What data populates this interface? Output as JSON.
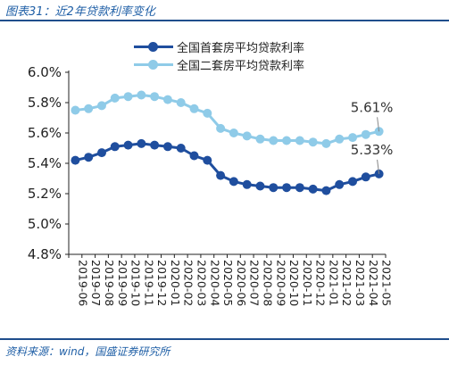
{
  "figure_title": "图表31：近2年贷款利率变化",
  "source_note": "资料来源：wind，国盛证券研究所",
  "chart_data": {
    "type": "line",
    "categories": [
      "2019-06",
      "2019-07",
      "2019-08",
      "2019-09",
      "2019-10",
      "2019-11",
      "2019-12",
      "2020-01",
      "2020-02",
      "2020-03",
      "2020-04",
      "2020-05",
      "2020-06",
      "2020-07",
      "2020-08",
      "2020-09",
      "2020-10",
      "2020-11",
      "2020-12",
      "2021-01",
      "2021-02",
      "2021-03",
      "2021-04",
      "2021-05"
    ],
    "x_tick_labels": [
      "2019-06",
      "2019-08",
      "2019-10",
      "2019-12",
      "2020-02",
      "2020-04",
      "2020-06",
      "2020-08",
      "2020-10",
      "2020-12",
      "2021-02",
      "2021-04"
    ],
    "x_tick_labels_right": [
      "2019-07",
      "2019-09",
      "2019-11",
      "2020-01",
      "2020-03",
      "2020-05",
      "2020-07",
      "2020-09",
      "2020-11",
      "2021-01",
      "2021-03",
      "2021-05"
    ],
    "series": [
      {
        "name": "全国首套房平均贷款利率",
        "color": "#1f4e9e",
        "values": [
          5.42,
          5.44,
          5.47,
          5.51,
          5.52,
          5.53,
          5.52,
          5.51,
          5.5,
          5.45,
          5.42,
          5.32,
          5.28,
          5.26,
          5.25,
          5.24,
          5.24,
          5.24,
          5.23,
          5.22,
          5.26,
          5.28,
          5.31,
          5.33
        ]
      },
      {
        "name": "全国二套房平均贷款利率",
        "color": "#8fcbe8",
        "values": [
          5.75,
          5.76,
          5.78,
          5.83,
          5.84,
          5.85,
          5.84,
          5.82,
          5.8,
          5.76,
          5.73,
          5.63,
          5.6,
          5.58,
          5.56,
          5.55,
          5.55,
          5.55,
          5.54,
          5.53,
          5.56,
          5.57,
          5.59,
          5.61
        ]
      }
    ],
    "ylim": [
      4.8,
      6.0
    ],
    "y_ticks": [
      "4.8%",
      "5.0%",
      "5.2%",
      "5.4%",
      "5.6%",
      "5.8%",
      "6.0%"
    ],
    "annotations": [
      {
        "series": 1,
        "text": "5.61%"
      },
      {
        "series": 0,
        "text": "5.33%"
      }
    ],
    "legend": "top-center",
    "grid": false
  }
}
